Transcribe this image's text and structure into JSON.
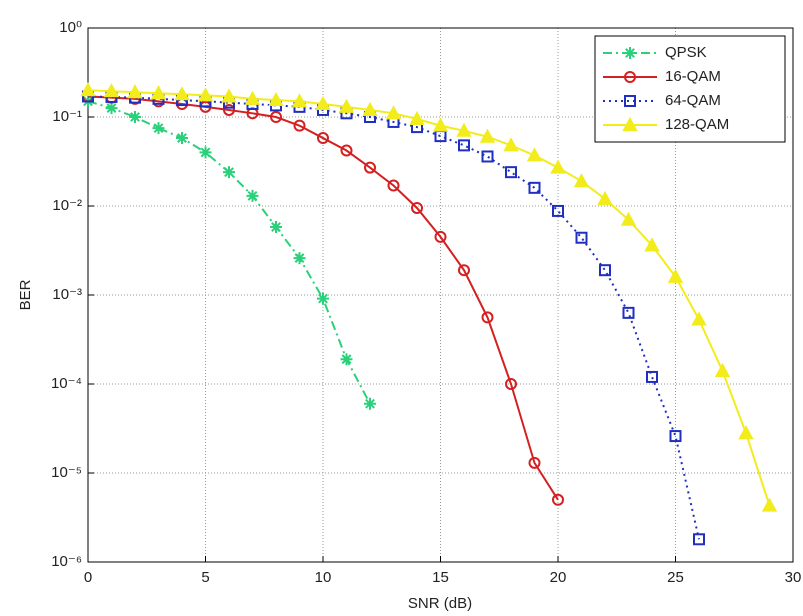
{
  "chart_data": {
    "type": "line",
    "xlabel": "SNR (dB)",
    "ylabel": "BER",
    "xlim": [
      0,
      30
    ],
    "xticks": [
      0,
      5,
      10,
      15,
      20,
      25,
      30
    ],
    "ylim": [
      1e-06,
      1
    ],
    "log_y": true,
    "grid": true,
    "legend": "northeast",
    "yticks": [
      {
        "value": 1,
        "label": "10⁰"
      },
      {
        "value": 0.1,
        "label": "10⁻¹"
      },
      {
        "value": 0.01,
        "label": "10⁻²"
      },
      {
        "value": 0.001,
        "label": "10⁻³"
      },
      {
        "value": 0.0001,
        "label": "10⁻⁴"
      },
      {
        "value": 1e-05,
        "label": "10⁻⁵"
      },
      {
        "value": 1e-06,
        "label": "10⁻⁶"
      }
    ],
    "series": [
      {
        "name": "QPSK",
        "color": "#2bd07a",
        "line_style": "dashdot",
        "marker": "star",
        "x": [
          0,
          1,
          2,
          3,
          4,
          5,
          6,
          7,
          8,
          9,
          10,
          11,
          12
        ],
        "values": [
          0.15,
          0.126,
          0.1,
          0.075,
          0.058,
          0.04,
          0.024,
          0.013,
          0.0058,
          0.0026,
          0.00091,
          0.00019,
          6e-05
        ]
      },
      {
        "name": "16-QAM",
        "color": "#d42020",
        "line_style": "solid",
        "marker": "circle",
        "x": [
          0,
          1,
          2,
          3,
          4,
          5,
          6,
          7,
          8,
          9,
          10,
          11,
          12,
          13,
          14,
          15,
          16,
          17,
          18,
          19,
          20
        ],
        "values": [
          0.17,
          0.165,
          0.16,
          0.15,
          0.14,
          0.13,
          0.12,
          0.11,
          0.1,
          0.08,
          0.058,
          0.042,
          0.027,
          0.017,
          0.0095,
          0.0045,
          0.0019,
          0.00056,
          0.0001,
          1.3e-05,
          5e-06
        ]
      },
      {
        "name": "64-QAM",
        "color": "#1f2fc0",
        "line_style": "dotted",
        "marker": "square",
        "x": [
          0,
          1,
          2,
          3,
          4,
          5,
          6,
          7,
          8,
          9,
          10,
          11,
          12,
          13,
          14,
          15,
          16,
          17,
          18,
          19,
          20,
          21,
          22,
          23,
          24,
          25,
          26
        ],
        "values": [
          0.17,
          0.168,
          0.165,
          0.16,
          0.155,
          0.15,
          0.145,
          0.14,
          0.135,
          0.13,
          0.12,
          0.11,
          0.1,
          0.088,
          0.077,
          0.061,
          0.048,
          0.036,
          0.024,
          0.016,
          0.0088,
          0.0044,
          0.0019,
          0.00063,
          0.00012,
          2.6e-05,
          1.8e-06
        ]
      },
      {
        "name": "128-QAM",
        "color": "#f2ec1c",
        "line_style": "solid",
        "marker": "triangle",
        "x": [
          0,
          1,
          2,
          3,
          4,
          5,
          6,
          7,
          8,
          9,
          10,
          11,
          12,
          13,
          14,
          15,
          16,
          17,
          18,
          19,
          20,
          21,
          22,
          23,
          24,
          25,
          26,
          27,
          28,
          29
        ],
        "values": [
          0.2,
          0.195,
          0.19,
          0.185,
          0.18,
          0.175,
          0.17,
          0.16,
          0.155,
          0.15,
          0.14,
          0.13,
          0.12,
          0.11,
          0.095,
          0.08,
          0.07,
          0.06,
          0.048,
          0.037,
          0.027,
          0.019,
          0.012,
          0.007,
          0.0036,
          0.0016,
          0.00053,
          0.00014,
          2.8e-05,
          4.3e-06
        ]
      }
    ]
  }
}
